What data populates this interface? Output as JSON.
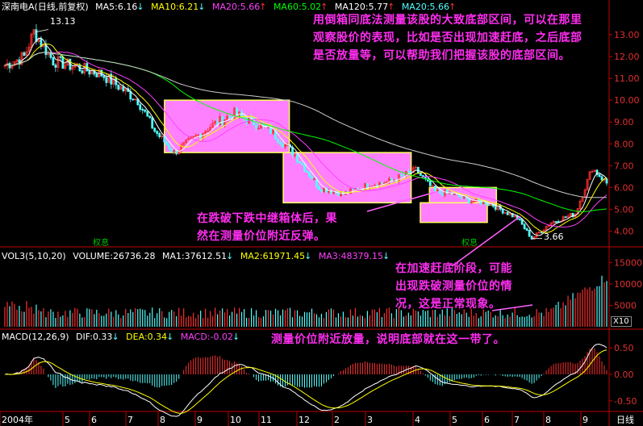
{
  "colors": {
    "bg": "#000000",
    "up": "#ff3030",
    "down": "#54ffff",
    "axis": "#c00000",
    "ma5": "#ffffff",
    "ma10": "#ffff00",
    "ma20": "#ff40ff",
    "ma60": "#00ff00",
    "ma120": "#cccccc",
    "box": "#ff80ff",
    "box_border": "#ffff60",
    "annotation": "#ff2df0"
  },
  "header": {
    "stock": "深南电A",
    "period": "(日线,前复权)",
    "ma5": "MA5:6.16",
    "ma10": "MA10:6.21",
    "ma20": "MA20:5.66",
    "ma60": "MA60:5.02",
    "ma120": "MA120:5.77",
    "ma20b": "MA20:5.66",
    "arrow_down": "↓",
    "arrow_up": "↑"
  },
  "volume_header": {
    "title": "VOL3(5,10,20)",
    "volume": "VOLUME:26736.28",
    "ma1": "MA1:37612.51",
    "ma2": "MA2:61971.45",
    "ma3": "MA3:48379.15"
  },
  "macd_header": {
    "title": "MACD(12,26,9)",
    "dif": "DIF:0.33",
    "dea": "DEA:0.34",
    "macd": "MACD:-0.02"
  },
  "annotations": {
    "top": [
      "用倒箱同底法测量该股的大致底部区间，可以在那里",
      "观察股价的表现，比如是否出现加速赶底，之后底部",
      "是否放量等，可以帮助我们把握该股的底部区间。"
    ],
    "mid": [
      "在跌破下跌中继箱体后，果",
      "然在测量价位附近反弹。"
    ],
    "right": [
      "在加速赶底阶段，可能",
      "出现跌破测量价位的情",
      "况，这是正常现象。"
    ],
    "bottom": "测量价位附近放量，说明底部就在这一带了。"
  },
  "price_labels": {
    "high": "13.13",
    "low": "3.66",
    "marker1": "权息",
    "marker2": "权息"
  },
  "volume_unit": "X10",
  "footer": {
    "year": "2004年",
    "period": "日线"
  },
  "chart_data": [
    {
      "type": "candlestick",
      "title": "深南电A (日线,前复权)",
      "ylim": [
        3.5,
        14.0
      ],
      "y_ticks": [
        "13.00",
        "12.00",
        "11.00",
        "10.00",
        "9.00",
        "8.00",
        "7.00",
        "6.00",
        "5.00",
        "4.00"
      ],
      "y_tick_values": [
        13,
        12,
        11,
        10,
        9,
        8,
        7,
        6,
        5,
        4
      ],
      "x_labels": [
        "2004年",
        "5",
        "6",
        "7",
        "8",
        "9",
        "10",
        "11",
        "12",
        "2",
        "3",
        "4",
        "5",
        "6",
        "7",
        "8",
        "9"
      ],
      "key_points": {
        "high": 13.13,
        "low": 3.66,
        "last_close": 6.16
      },
      "series": [
        {
          "name": "MA5",
          "value": 6.16
        },
        {
          "name": "MA10",
          "value": 6.21
        },
        {
          "name": "MA20",
          "value": 5.66
        },
        {
          "name": "MA60",
          "value": 5.02
        },
        {
          "name": "MA120",
          "value": 5.77
        }
      ],
      "boxes": [
        {
          "from": 0.27,
          "to": 0.475,
          "ytop": 10.0,
          "ybot": 7.6
        },
        {
          "from": 0.465,
          "to": 0.675,
          "ytop": 7.6,
          "ybot": 5.3
        },
        {
          "from": 0.705,
          "to": 0.815,
          "ytop": 6.0,
          "ybot": 5.2
        },
        {
          "from": 0.69,
          "to": 0.8,
          "ytop": 5.3,
          "ybot": 4.4
        }
      ]
    },
    {
      "type": "bar",
      "title": "VOL3(5,10,20)",
      "ylim": [
        0,
        16000
      ],
      "y_ticks": [
        "15000",
        "10000",
        "5000"
      ],
      "y_tick_values": [
        15000,
        10000,
        5000
      ],
      "series": [
        {
          "name": "VOLUME",
          "value": 26736.28
        },
        {
          "name": "MA1",
          "value": 37612.51
        },
        {
          "name": "MA2",
          "value": 61971.45
        },
        {
          "name": "MA3",
          "value": 48379.15
        }
      ]
    },
    {
      "type": "bar",
      "title": "MACD(12,26,9)",
      "ylim": [
        -0.7,
        0.7
      ],
      "y_ticks": [
        "0.50",
        "0.00",
        "-0.50"
      ],
      "y_tick_values": [
        0.5,
        0,
        -0.5
      ],
      "series": [
        {
          "name": "DIF",
          "value": 0.33
        },
        {
          "name": "DEA",
          "value": 0.34
        },
        {
          "name": "MACD",
          "value": -0.02
        }
      ]
    }
  ]
}
